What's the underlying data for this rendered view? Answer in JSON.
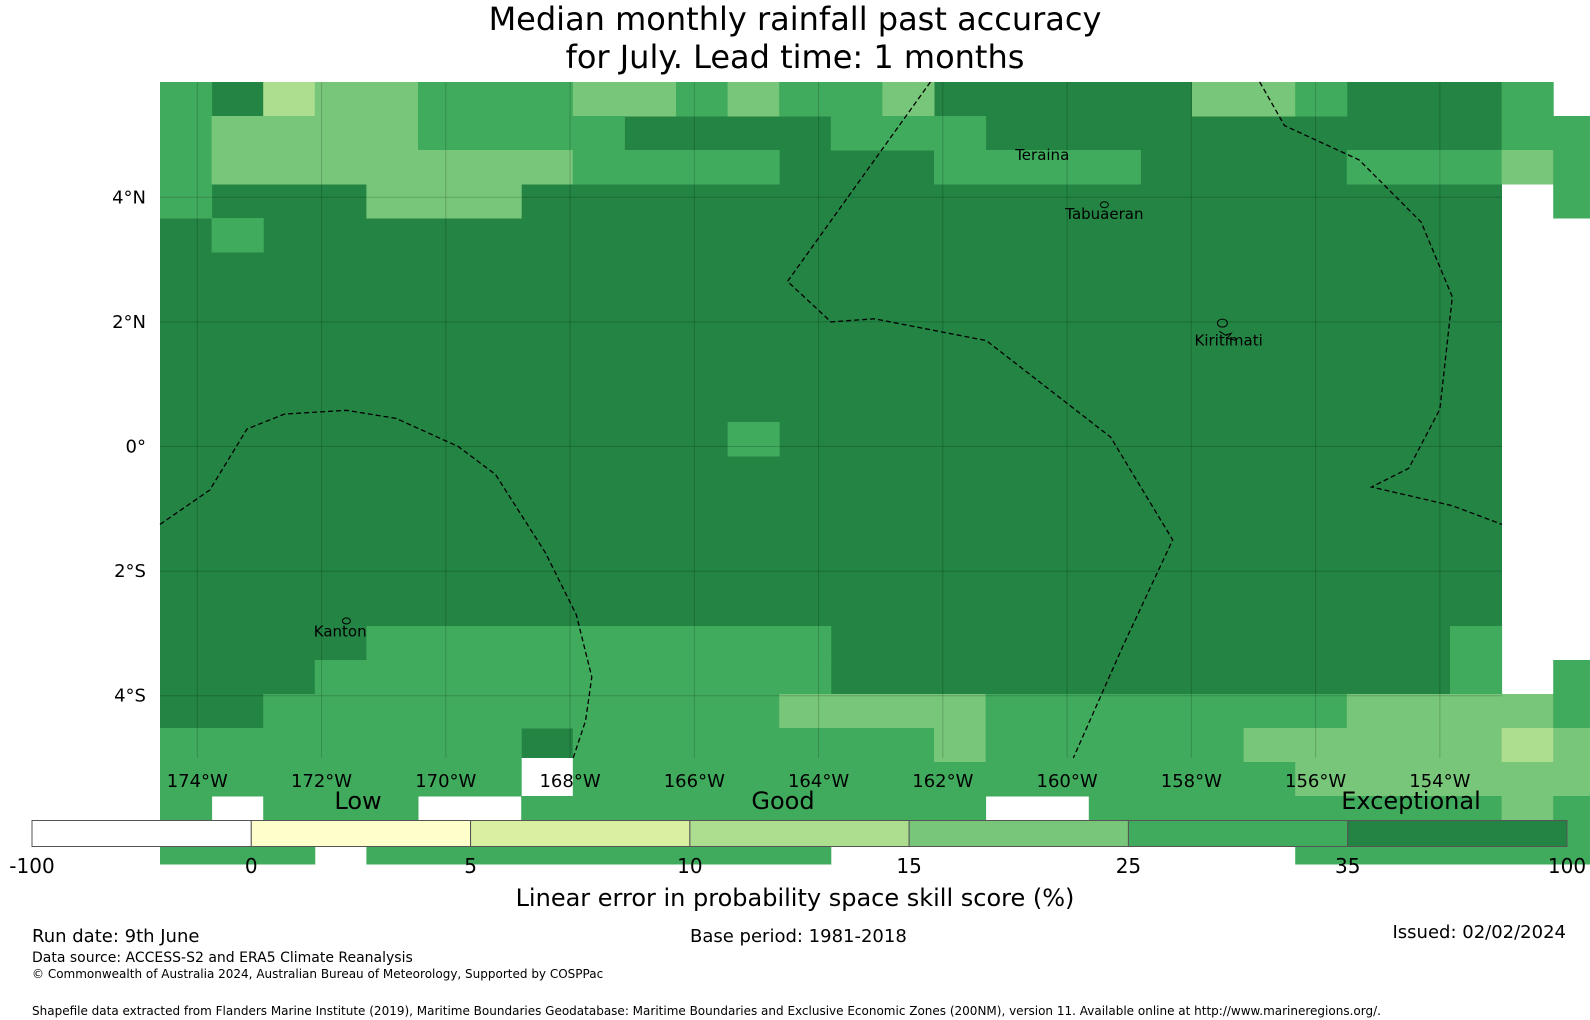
{
  "title": {
    "line1": "Median monthly rainfall past accuracy",
    "line2": "for July. Lead time: 1 months"
  },
  "map": {
    "lon_range": [
      -174.6,
      -153.0
    ],
    "lat_range": [
      -5.0,
      5.85
    ],
    "lon_ticks": [
      {
        "value": -174,
        "label": "174°W"
      },
      {
        "value": -172,
        "label": "172°W"
      },
      {
        "value": -170,
        "label": "170°W"
      },
      {
        "value": -168,
        "label": "168°W"
      },
      {
        "value": -166,
        "label": "166°W"
      },
      {
        "value": -164,
        "label": "164°W"
      },
      {
        "value": -162,
        "label": "162°W"
      },
      {
        "value": -160,
        "label": "160°W"
      },
      {
        "value": -158,
        "label": "158°W"
      },
      {
        "value": -156,
        "label": "156°W"
      },
      {
        "value": -154,
        "label": "154°W"
      }
    ],
    "lat_ticks": [
      {
        "value": 4,
        "label": "4°N"
      },
      {
        "value": 2,
        "label": "2°N"
      },
      {
        "value": 0,
        "label": "0°"
      },
      {
        "value": -2,
        "label": "2°S"
      },
      {
        "value": -4,
        "label": "4°S"
      }
    ],
    "places": [
      {
        "name": "Teraina",
        "lon": -160.4,
        "lat": 4.6
      },
      {
        "name": "Tabuaeran",
        "lon": -159.4,
        "lat": 3.65
      },
      {
        "name": "Kiritimati",
        "lon": -157.4,
        "lat": 1.62
      },
      {
        "name": "Kanton",
        "lon": -171.7,
        "lat": -3.05
      }
    ],
    "eez_boundaries": [
      [
        [
          -162.2,
          5.85
        ],
        [
          -164.5,
          2.65
        ],
        [
          -163.8,
          2.0
        ],
        [
          -163.1,
          2.05
        ],
        [
          -161.3,
          1.7
        ],
        [
          -159.3,
          0.15
        ],
        [
          -158.3,
          -1.5
        ],
        [
          -159.1,
          -3.2
        ],
        [
          -159.9,
          -5.0
        ]
      ],
      [
        [
          -156.9,
          5.85
        ],
        [
          -156.5,
          5.15
        ],
        [
          -155.3,
          4.6
        ],
        [
          -154.3,
          3.6
        ],
        [
          -153.8,
          2.4
        ],
        [
          -154.0,
          0.6
        ],
        [
          -154.5,
          -0.35
        ],
        [
          -155.1,
          -0.65
        ],
        [
          -153.8,
          -0.95
        ],
        [
          -153.0,
          -1.25
        ]
      ],
      [
        [
          -174.6,
          -1.25
        ],
        [
          -173.8,
          -0.7
        ],
        [
          -173.2,
          0.28
        ],
        [
          -172.6,
          0.52
        ],
        [
          -171.6,
          0.58
        ],
        [
          -170.8,
          0.45
        ],
        [
          -169.8,
          0.0
        ],
        [
          -169.2,
          -0.45
        ],
        [
          -168.4,
          -1.7
        ],
        [
          -167.9,
          -2.7
        ],
        [
          -167.65,
          -3.7
        ],
        [
          -167.75,
          -4.4
        ],
        [
          -167.95,
          -5.0
        ]
      ]
    ]
  },
  "colorbar": {
    "section_labels": {
      "low": "Low",
      "good": "Good",
      "exceptional": "Exceptional"
    },
    "ticks": [
      "-100",
      "0",
      "5",
      "10",
      "15",
      "25",
      "35",
      "100"
    ],
    "colors": [
      "#ffffff",
      "#ffffcc",
      "#d9f0a3",
      "#addd8e",
      "#78c679",
      "#41ab5d",
      "#238443"
    ],
    "label": "Linear error in probability space skill score (%)"
  },
  "footer": {
    "run_date": "Run date: 9th June",
    "base_period": "Base period: 1981-2018",
    "issued": "Issued: 02/02/2024",
    "data_source": "Data source: ACCESS-S2 and ERA5 Climate Reanalysis",
    "copyright": "© Commonwealth of Australia 2024, Australian Bureau of Meteorology, Supported by COSPPac",
    "shapefile": "Shapefile data extracted from Flanders Marine Institute (2019), Maritime Boundaries Geodatabase: Maritime Boundaries and Exclusive Economic Zones (200NM), version 11. Available online at http://www.marineregions.org/."
  }
}
